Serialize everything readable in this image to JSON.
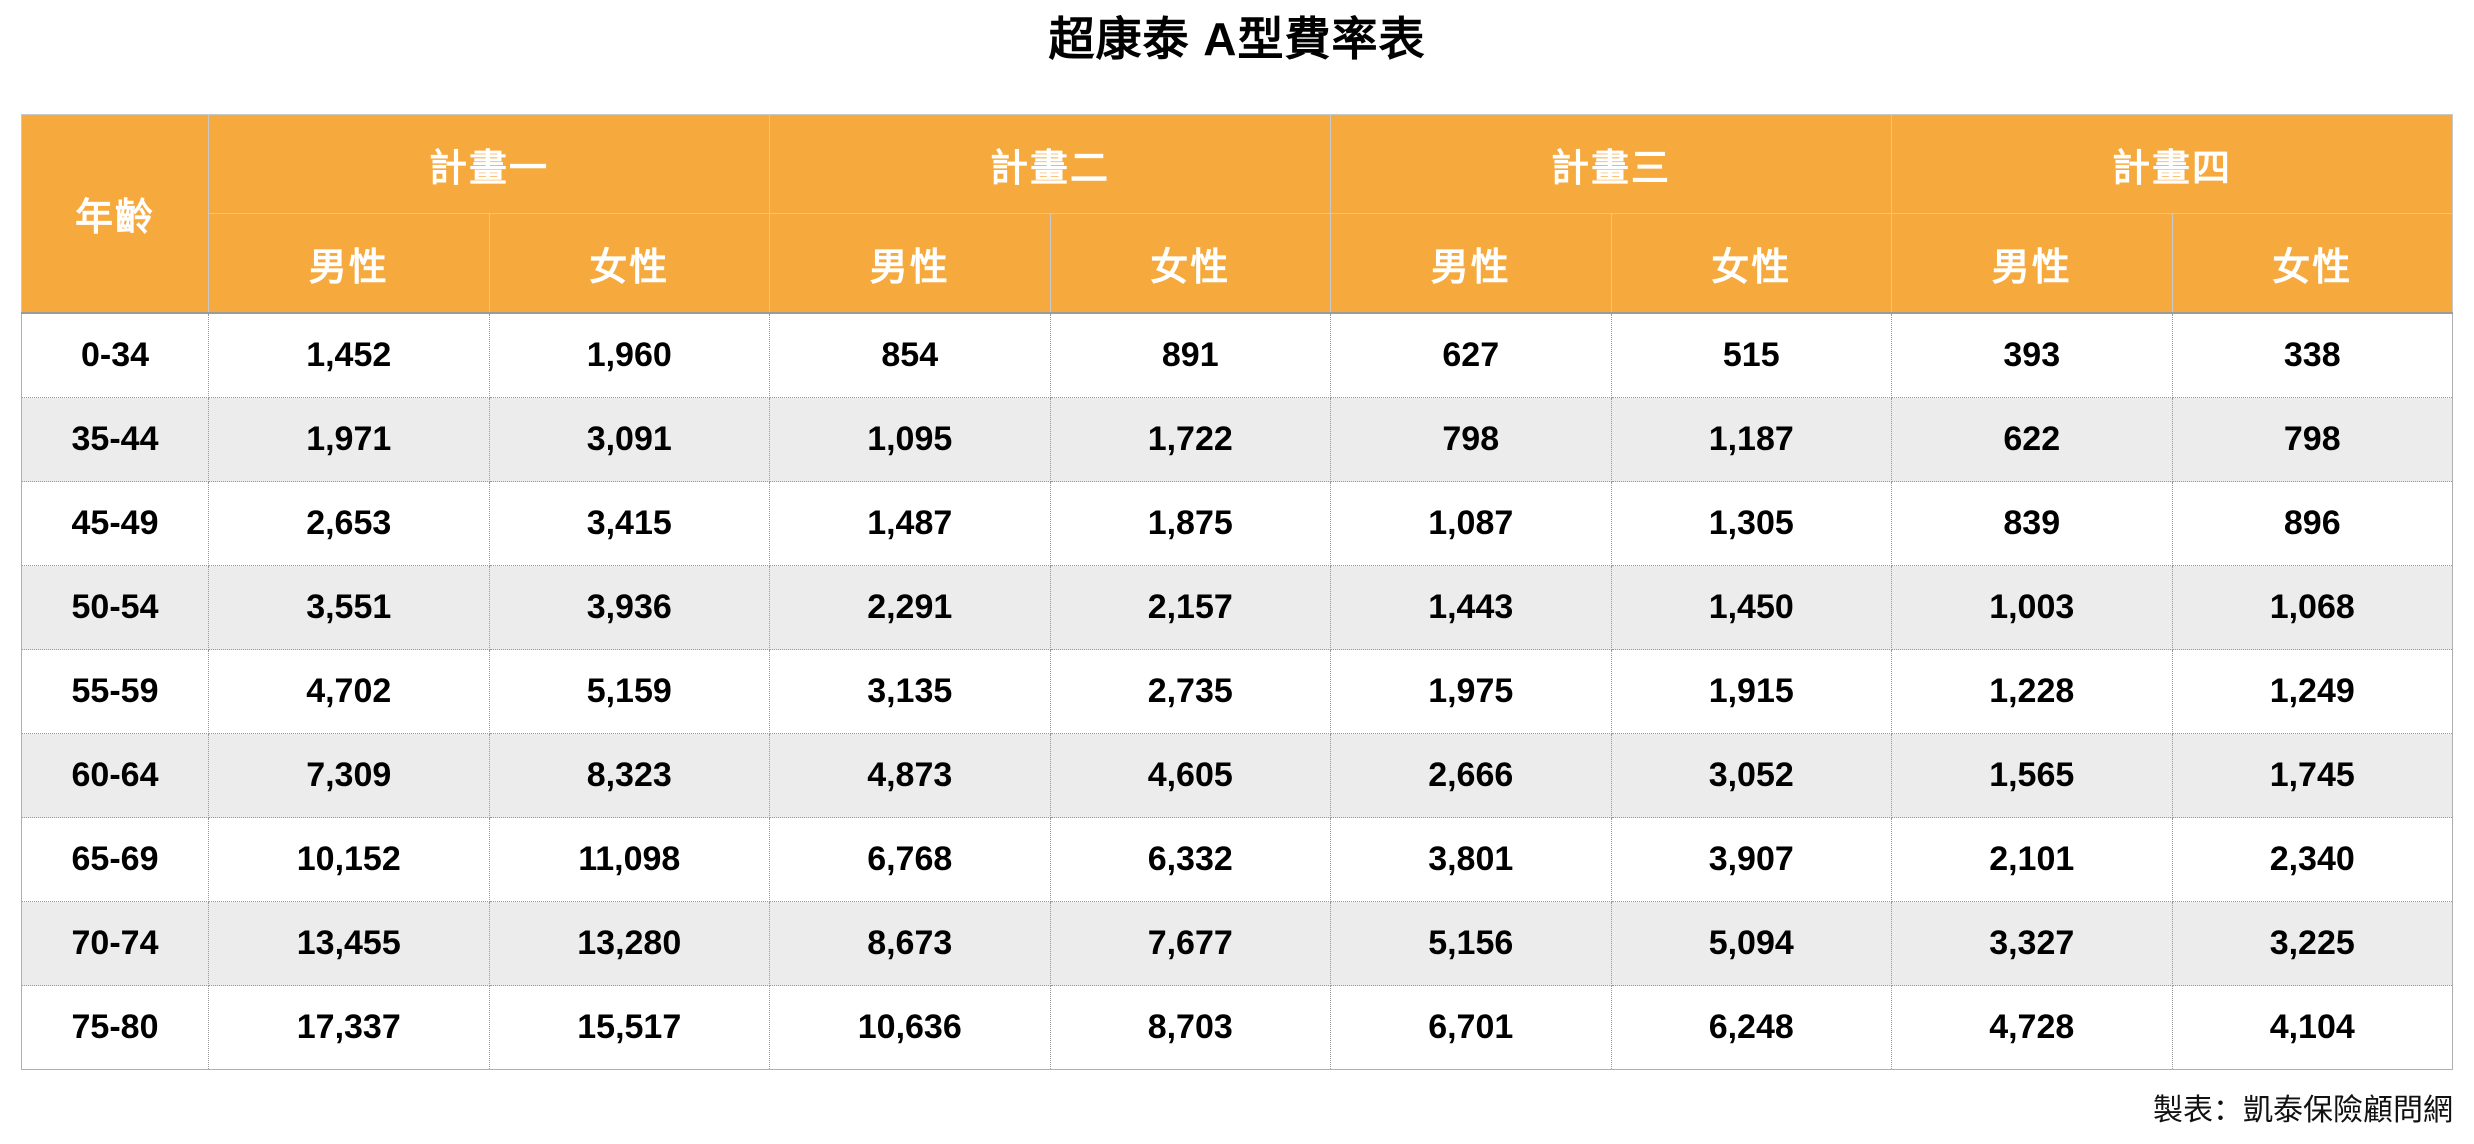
{
  "title": "超康泰 A型費率表",
  "footer": {
    "credit": "製表：凱泰保險顧問網"
  },
  "colors": {
    "header_bg": "#F6A93C",
    "header_text": "#FFFFFF",
    "row_alt_bg": "#ECECEC",
    "row_bg": "#FFFFFF",
    "body_text": "#000000",
    "border_solid": "#B0B0B0",
    "border_dotted": "#999999"
  },
  "chart_data": {
    "type": "table",
    "title": "超康泰 A型費率表",
    "row_header": "年齡",
    "column_groups": [
      "計畫一",
      "計畫二",
      "計畫三",
      "計畫四"
    ],
    "sub_columns": [
      "男性",
      "女性"
    ],
    "rows": [
      {
        "age": "0-34",
        "values": [
          "1,452",
          "1,960",
          "854",
          "891",
          "627",
          "515",
          "393",
          "338"
        ]
      },
      {
        "age": "35-44",
        "values": [
          "1,971",
          "3,091",
          "1,095",
          "1,722",
          "798",
          "1,187",
          "622",
          "798"
        ]
      },
      {
        "age": "45-49",
        "values": [
          "2,653",
          "3,415",
          "1,487",
          "1,875",
          "1,087",
          "1,305",
          "839",
          "896"
        ]
      },
      {
        "age": "50-54",
        "values": [
          "3,551",
          "3,936",
          "2,291",
          "2,157",
          "1,443",
          "1,450",
          "1,003",
          "1,068"
        ]
      },
      {
        "age": "55-59",
        "values": [
          "4,702",
          "5,159",
          "3,135",
          "2,735",
          "1,975",
          "1,915",
          "1,228",
          "1,249"
        ]
      },
      {
        "age": "60-64",
        "values": [
          "7,309",
          "8,323",
          "4,873",
          "4,605",
          "2,666",
          "3,052",
          "1,565",
          "1,745"
        ]
      },
      {
        "age": "65-69",
        "values": [
          "10,152",
          "11,098",
          "6,768",
          "6,332",
          "3,801",
          "3,907",
          "2,101",
          "2,340"
        ]
      },
      {
        "age": "70-74",
        "values": [
          "13,455",
          "13,280",
          "8,673",
          "7,677",
          "5,156",
          "5,094",
          "3,327",
          "3,225"
        ]
      },
      {
        "age": "75-80",
        "values": [
          "17,337",
          "15,517",
          "10,636",
          "8,703",
          "6,701",
          "6,248",
          "4,728",
          "4,104"
        ]
      }
    ]
  }
}
